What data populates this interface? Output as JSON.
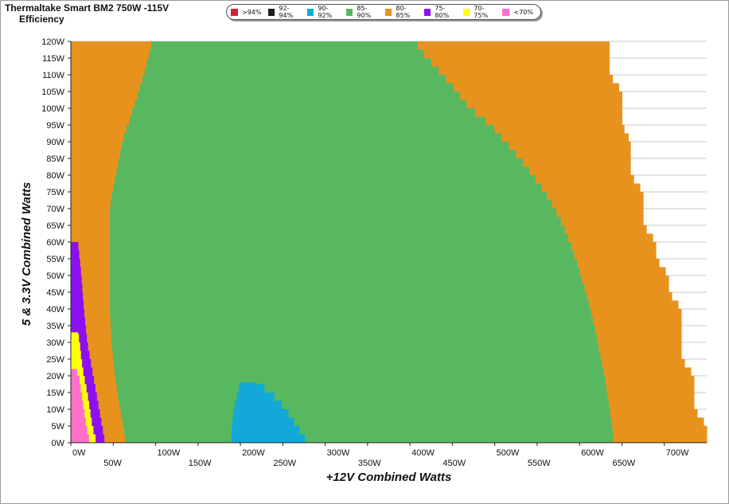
{
  "header": {
    "title": "Thermaltake  Smart BM2 750W -115V",
    "subtitle": "Efficiency"
  },
  "legend": [
    {
      "label": ">94%",
      "color": "#d62030"
    },
    {
      "label": "92-94%",
      "color": "#1e1e1e"
    },
    {
      "label": "90-92%",
      "color": "#12a8d8"
    },
    {
      "label": "85-90%",
      "color": "#58b860"
    },
    {
      "label": "80-85%",
      "color": "#e8921e"
    },
    {
      "label": "75-80%",
      "color": "#8c10f0"
    },
    {
      "label": "70-75%",
      "color": "#ffff10"
    },
    {
      "label": "<70%",
      "color": "#ff70c8"
    }
  ],
  "chart_data": {
    "type": "heatmap",
    "title": "Thermaltake  Smart BM2 750W -115V",
    "subtitle": "Efficiency",
    "xlabel": "+12V Combined Watts",
    "ylabel": "5 & 3.3V Combined Watts",
    "xlim": [
      0,
      750
    ],
    "ylim": [
      0,
      120
    ],
    "x_ticks_upper": [
      "0W",
      "100W",
      "200W",
      "300W",
      "400W",
      "500W",
      "600W",
      "700W"
    ],
    "x_ticks_lower": [
      "50W",
      "150W",
      "250W",
      "350W",
      "450W",
      "550W",
      "650W"
    ],
    "y_ticks": [
      "0W",
      "5W",
      "10W",
      "15W",
      "20W",
      "25W",
      "30W",
      "35W",
      "40W",
      "45W",
      "50W",
      "55W",
      "60W",
      "65W",
      "70W",
      "75W",
      "80W",
      "85W",
      "90W",
      "95W",
      "100W",
      "105W",
      "110W",
      "115W",
      "120W"
    ],
    "grid": "horizontal",
    "regions": [
      {
        "band": "80-85%",
        "color": "#e8921e",
        "boundary_x_at_y": {
          "0": 750,
          "5": 750,
          "10": 735,
          "20": 735,
          "25": 720,
          "40": 720,
          "45": 705,
          "50": 705,
          "55": 690,
          "60": 690,
          "65": 675,
          "75": 675,
          "80": 660,
          "90": 660,
          "95": 650,
          "105": 650,
          "110": 635,
          "120": 635
        }
      },
      {
        "band": "85-90%",
        "color": "#58b860",
        "boundary_left_at_y": {
          "0": 65,
          "5": 62,
          "10": 58,
          "15": 55,
          "20": 52,
          "25": 50,
          "30": 48,
          "35": 47,
          "40": 46,
          "60": 46,
          "70": 46,
          "75": 49,
          "80": 53,
          "85": 57,
          "90": 61,
          "95": 67,
          "100": 74,
          "105": 80,
          "110": 86,
          "115": 91,
          "120": 96
        },
        "boundary_right_at_y": {
          "0": 640,
          "5": 638,
          "10": 635,
          "15": 632,
          "20": 629,
          "25": 625,
          "30": 621,
          "35": 617,
          "40": 612,
          "45": 607,
          "50": 601,
          "55": 595,
          "60": 588,
          "65": 580,
          "70": 570,
          "75": 558,
          "80": 544,
          "85": 529,
          "90": 512,
          "95": 495,
          "100": 470,
          "105": 455,
          "110": 438,
          "115": 420,
          "120": 405
        }
      },
      {
        "band": "90-92%",
        "color": "#12a8d8",
        "boundary_x_at_y": {
          "0": [
            189,
            279
          ],
          "5": [
            190,
            266
          ],
          "10": [
            192,
            253
          ],
          "15": [
            197,
            235
          ],
          "18": [
            200,
            218
          ]
        }
      },
      {
        "band": "75-80%",
        "color": "#8c10f0",
        "boundary_x_at_y": {
          "0": [
            0,
            40
          ],
          "10": [
            0,
            33
          ],
          "20": [
            0,
            26
          ],
          "30": [
            0,
            19
          ],
          "40": [
            0,
            15
          ],
          "50": [
            0,
            12
          ],
          "60": [
            0,
            8
          ]
        }
      },
      {
        "band": "70-75%",
        "color": "#ffff10",
        "boundary_x_at_y": {
          "0": [
            0,
            30
          ],
          "5": [
            0,
            25
          ],
          "10": [
            0,
            22
          ],
          "15": [
            0,
            19
          ],
          "20": [
            0,
            15
          ],
          "25": [
            0,
            12
          ],
          "30": [
            0,
            10
          ],
          "33": [
            0,
            8
          ]
        }
      },
      {
        "band": "<70%",
        "color": "#ff70c8",
        "boundary_x_at_y": {
          "0": [
            0,
            22
          ],
          "5": [
            0,
            18
          ],
          "10": [
            0,
            15
          ],
          "15": [
            0,
            12
          ],
          "20": [
            0,
            9
          ],
          "22": [
            0,
            6
          ]
        }
      }
    ]
  }
}
